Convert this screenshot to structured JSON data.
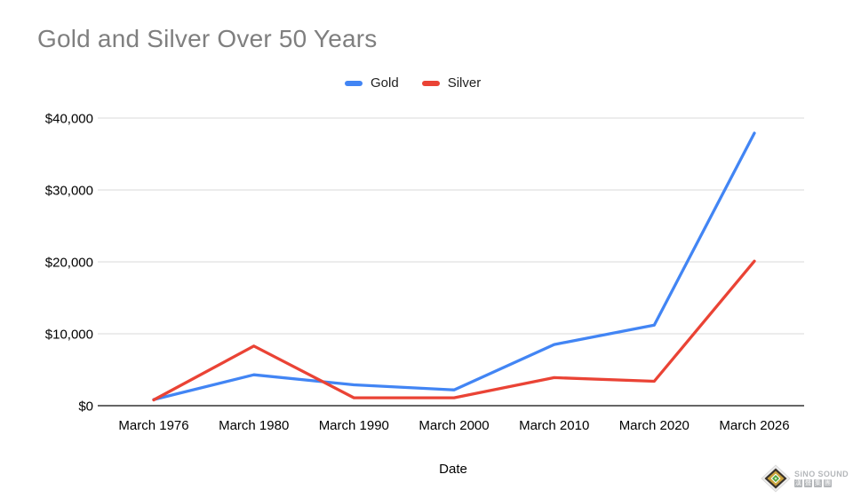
{
  "title": "Gold and Silver Over 50 Years",
  "chart_data": {
    "type": "line",
    "title": "Gold and Silver Over 50 Years",
    "xlabel": "Date",
    "ylabel": "",
    "categories": [
      "March 1976",
      "March 1980",
      "March 1990",
      "March 2000",
      "March 2010",
      "March 2020",
      "March 2026"
    ],
    "y_tick_labels": [
      "$0",
      "$10,000",
      "$20,000",
      "$30,000",
      "$40,000"
    ],
    "ylim": [
      0,
      40000
    ],
    "grid": true,
    "legend_position": "top-center",
    "series": [
      {
        "name": "Gold",
        "color": "#4285F4",
        "values": [
          850,
          4300,
          2900,
          2200,
          8500,
          11200,
          37900
        ]
      },
      {
        "name": "Silver",
        "color": "#EA4335",
        "values": [
          800,
          8300,
          1100,
          1100,
          3900,
          3400,
          20100
        ]
      }
    ]
  },
  "colors": {
    "title_text": "#7f7f7f",
    "axis_text": "#000000",
    "gridline": "#d9d9d9",
    "baseline": "#333333",
    "background": "#ffffff",
    "gold_series": "#4285F4",
    "silver_series": "#EA4335"
  },
  "watermark": {
    "brand": "SiNO SOUND",
    "brand_cn": "漢聲集團",
    "brand_cn_chars": [
      "漢",
      "聲",
      "集",
      "團"
    ],
    "icon": "diamond-gem-icon"
  }
}
